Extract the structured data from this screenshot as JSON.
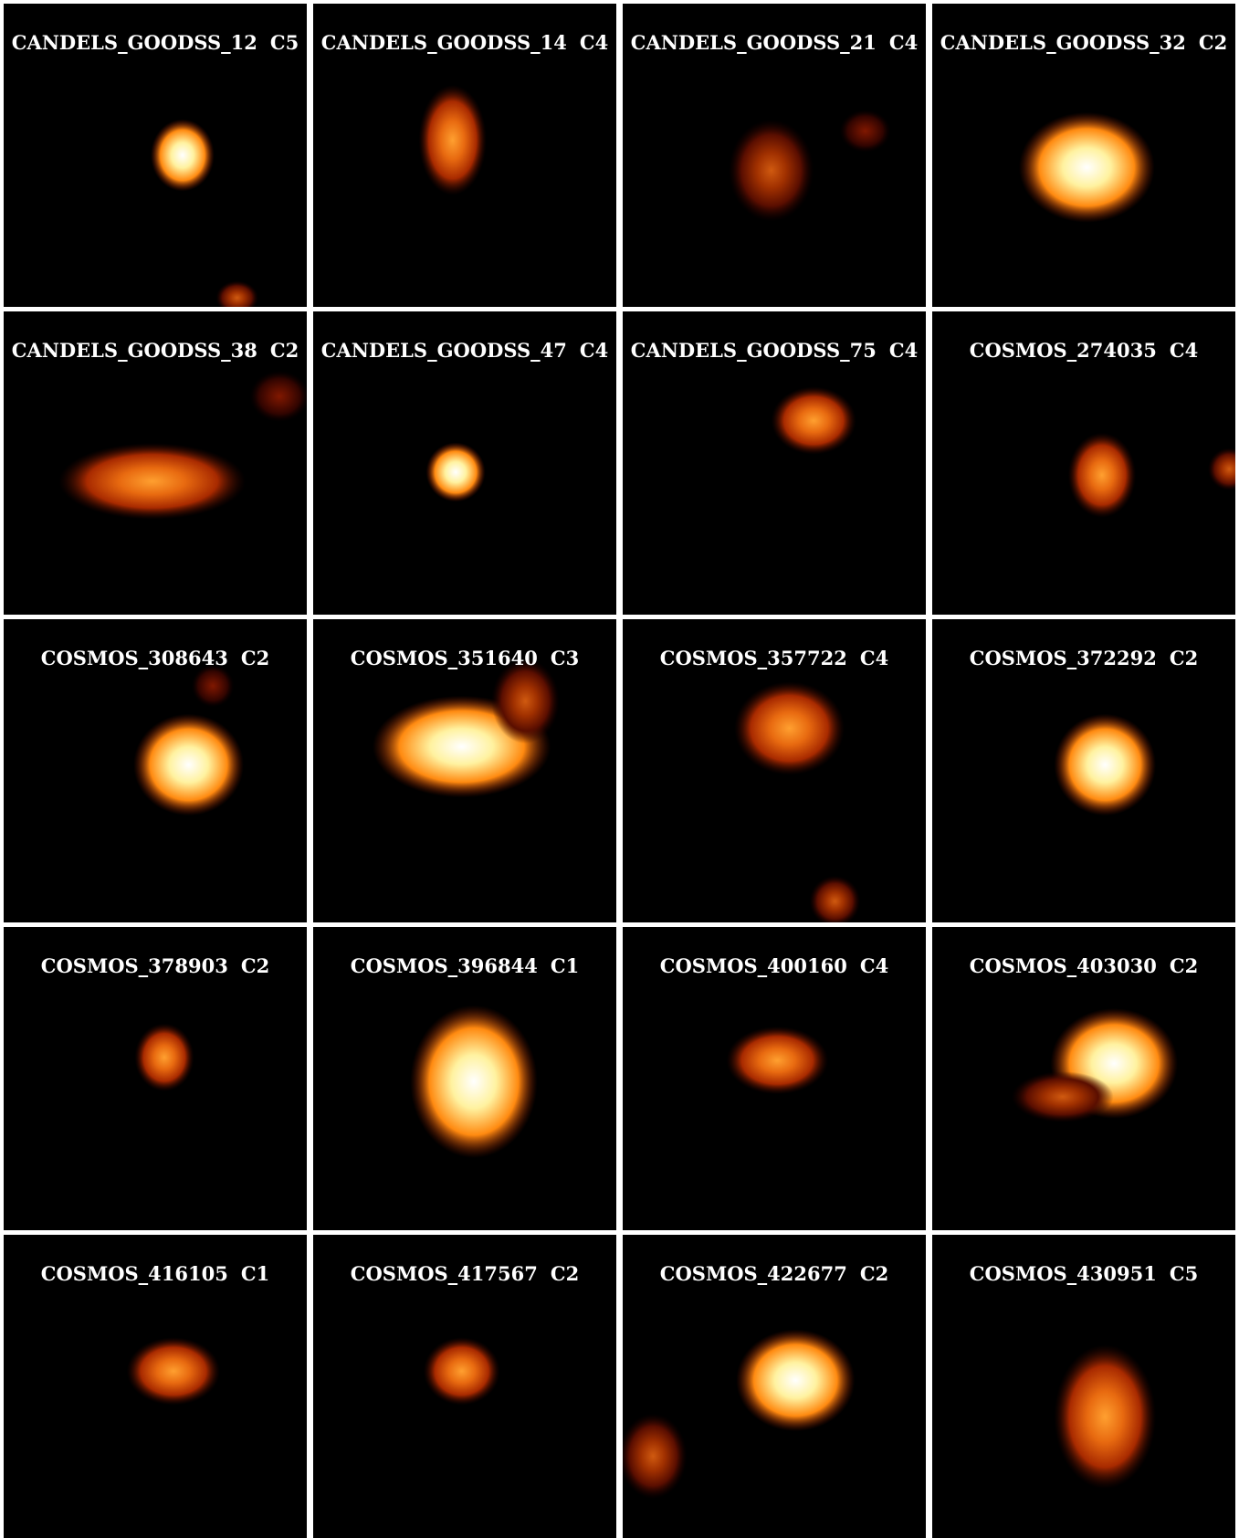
{
  "panels": [
    {
      "name": "CANDELS_GOODSS_12",
      "class": "C5"
    },
    {
      "name": "CANDELS_GOODSS_14",
      "class": "C4"
    },
    {
      "name": "CANDELS_GOODSS_21",
      "class": "C4"
    },
    {
      "name": "CANDELS_GOODSS_32",
      "class": "C2"
    },
    {
      "name": "CANDELS_GOODSS_38",
      "class": "C2"
    },
    {
      "name": "CANDELS_GOODSS_47",
      "class": "C4"
    },
    {
      "name": "CANDELS_GOODSS_75",
      "class": "C4"
    },
    {
      "name": "COSMOS_274035",
      "class": "C4"
    },
    {
      "name": "COSMOS_308643",
      "class": "C2"
    },
    {
      "name": "COSMOS_351640",
      "class": "C3"
    },
    {
      "name": "COSMOS_357722",
      "class": "C4"
    },
    {
      "name": "COSMOS_372292",
      "class": "C2"
    },
    {
      "name": "COSMOS_378903",
      "class": "C2"
    },
    {
      "name": "COSMOS_396844",
      "class": "C1"
    },
    {
      "name": "COSMOS_400160",
      "class": "C4"
    },
    {
      "name": "COSMOS_403030",
      "class": "C2"
    },
    {
      "name": "COSMOS_416105",
      "class": "C1"
    },
    {
      "name": "COSMOS_417567",
      "class": "C2"
    },
    {
      "name": "COSMOS_422677",
      "class": "C2"
    },
    {
      "name": "COSMOS_430951",
      "class": "C5"
    }
  ]
}
